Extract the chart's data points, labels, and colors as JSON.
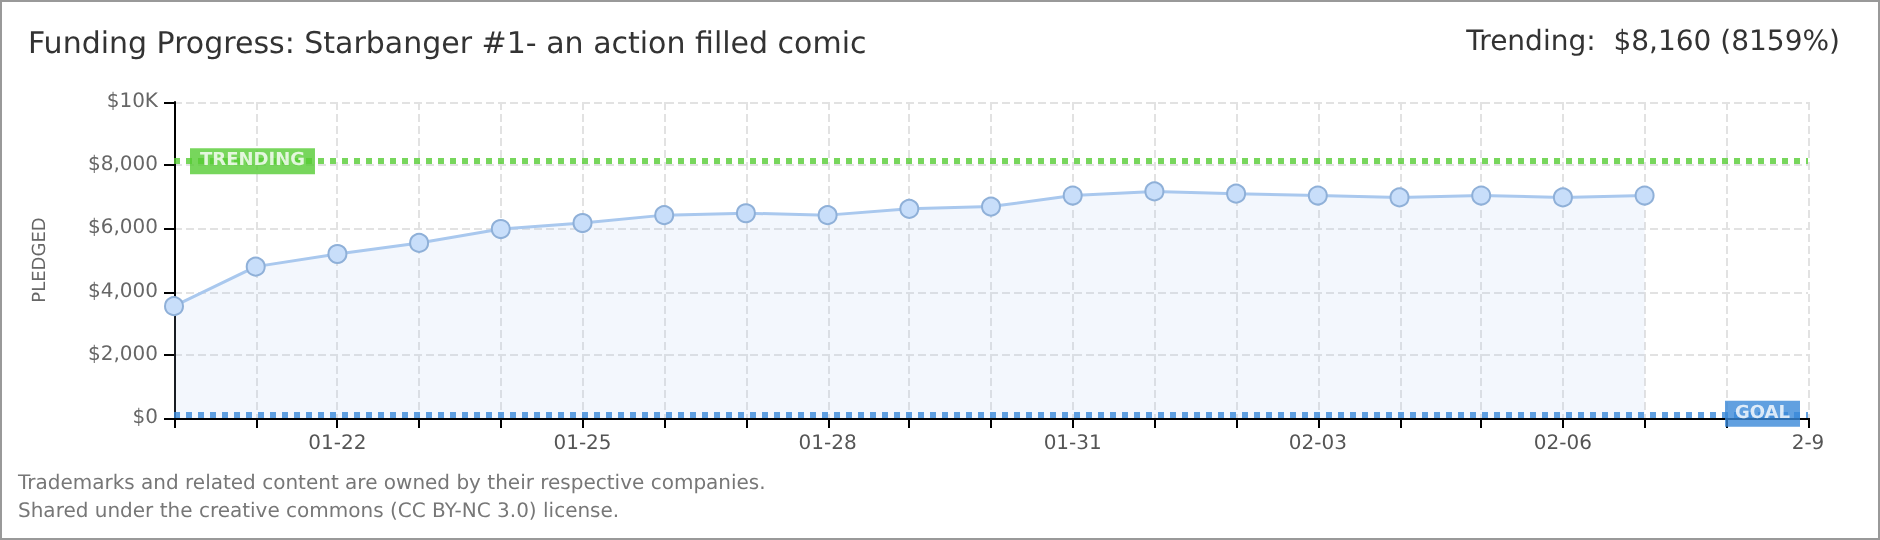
{
  "chart_data": {
    "type": "area",
    "title": "Funding Progress: Starbanger #1- an action filled comic",
    "subtitle": "Trending:  $8,160 (8159%)",
    "ylabel": "PLEDGED",
    "x": [
      "--01-20",
      "--01-21",
      "--01-22",
      "--01-23",
      "--01-24",
      "--01-25",
      "--01-26",
      "--01-27",
      "--01-28",
      "--01-29",
      "--01-30",
      "--01-31",
      "--02-01",
      "--02-02",
      "--02-03",
      "--02-04",
      "--02-05",
      "--02-06",
      "--02-07"
    ],
    "series": [
      {
        "color": "#a9c8ee",
        "values": [
          3540,
          4790,
          5190,
          5540,
          5980,
          6170,
          6420,
          6480,
          6420,
          6620,
          6690,
          7040,
          7170,
          7100,
          7040,
          6980,
          7040,
          6980,
          7040
        ]
      }
    ],
    "xlim": [
      "--01-20",
      "--02-09"
    ],
    "xticks": [
      {
        "value": "--01-20",
        "label": null
      },
      {
        "value": "--01-21",
        "label": null
      },
      {
        "value": "--01-22",
        "label": "01-22"
      },
      {
        "value": "--01-23",
        "label": null
      },
      {
        "value": "--01-24",
        "label": null
      },
      {
        "value": "--01-25",
        "label": "01-25"
      },
      {
        "value": "--01-26",
        "label": null
      },
      {
        "value": "--01-27",
        "label": null
      },
      {
        "value": "--01-28",
        "label": "01-28"
      },
      {
        "value": "--01-29",
        "label": null
      },
      {
        "value": "--01-30",
        "label": null
      },
      {
        "value": "--01-31",
        "label": "01-31"
      },
      {
        "value": "--02-01",
        "label": null
      },
      {
        "value": "--02-02",
        "label": null
      },
      {
        "value": "--02-03",
        "label": "02-03"
      },
      {
        "value": "--02-04",
        "label": null
      },
      {
        "value": "--02-05",
        "label": null
      },
      {
        "value": "--02-06",
        "label": "02-06"
      },
      {
        "value": "--02-07",
        "label": null
      },
      {
        "value": "--02-08",
        "label": null
      },
      {
        "value": "--02-09",
        "label": "2-9"
      }
    ],
    "ylim": [
      0,
      10000
    ],
    "yticks": [
      {
        "value": 0,
        "label": "$0"
      },
      {
        "value": 2000,
        "label": "$2,000"
      },
      {
        "value": 4000,
        "label": "$4,000"
      },
      {
        "value": 6000,
        "label": "$6,000"
      },
      {
        "value": 8000,
        "label": "$8,000"
      },
      {
        "value": 10000,
        "label": "$10K"
      }
    ],
    "ref_lines": [
      {
        "axis": "y",
        "value": 8160,
        "label": "TRENDING",
        "color": "#55cc33",
        "line_style": "dotted"
      },
      {
        "axis": "y",
        "value": 100,
        "label": "GOAL",
        "color": "#3a88d8",
        "line_style": "dotted"
      }
    ],
    "grid": true,
    "marker": "circle",
    "line_style": "solid",
    "annotations": [
      "Trademarks and related content are owned by their respective companies.",
      "Shared under the creative commons (CC BY-NC 3.0) license."
    ]
  }
}
